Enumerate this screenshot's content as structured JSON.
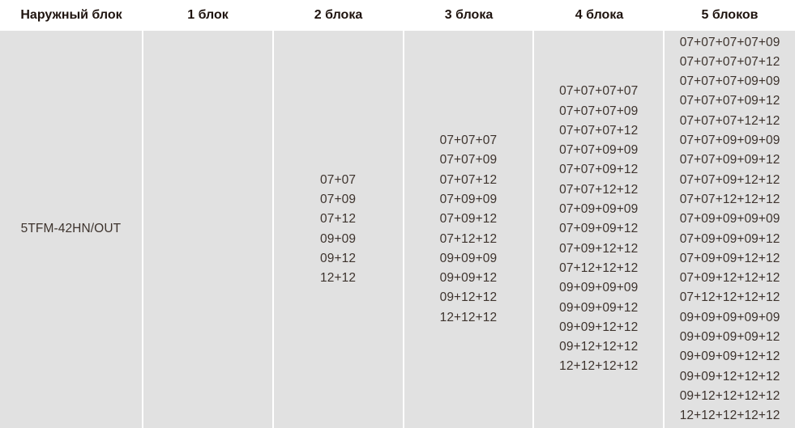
{
  "headers": [
    "Наружный блок",
    "1 блок",
    "2 блока",
    "3 блока",
    "4 блока",
    "5 блоков"
  ],
  "row": {
    "outdoor_unit": "5TFM-42HN/OUT",
    "one_unit": [],
    "two_units": [
      "07+07",
      "07+09",
      "07+12",
      "09+09",
      "09+12",
      "12+12"
    ],
    "three_units": [
      "07+07+07",
      "07+07+09",
      "07+07+12",
      "07+09+09",
      "07+09+12",
      "07+12+12",
      "09+09+09",
      "09+09+12",
      "09+12+12",
      "12+12+12"
    ],
    "four_units": [
      "07+07+07+07",
      "07+07+07+09",
      "07+07+07+12",
      "07+07+09+09",
      "07+07+09+12",
      "07+07+12+12",
      "07+09+09+09",
      "07+09+09+12",
      "07+09+12+12",
      "07+12+12+12",
      "09+09+09+09",
      "09+09+09+12",
      "09+09+12+12",
      "09+12+12+12",
      "12+12+12+12"
    ],
    "five_units": [
      "07+07+07+07+09",
      "07+07+07+07+12",
      "07+07+07+09+09",
      "07+07+07+09+12",
      "07+07+07+12+12",
      "07+07+09+09+09",
      "07+07+09+09+12",
      "07+07+09+12+12",
      "07+07+12+12+12",
      "07+09+09+09+09",
      "07+09+09+09+12",
      "07+09+09+12+12",
      "07+09+12+12+12",
      "07+12+12+12+12",
      "09+09+09+09+09",
      "09+09+09+09+12",
      "09+09+09+12+12",
      "09+09+12+12+12",
      "09+12+12+12+12",
      "12+12+12+12+12"
    ]
  }
}
